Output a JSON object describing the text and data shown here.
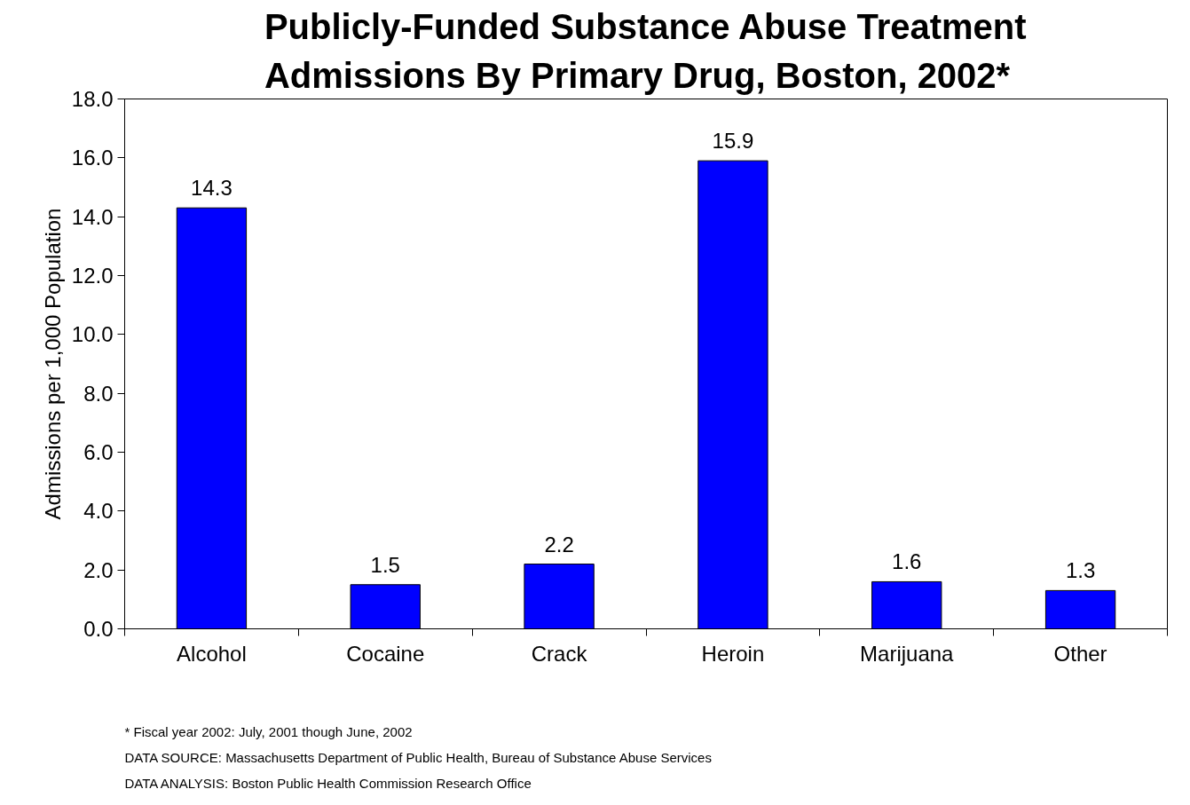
{
  "chart_data": {
    "type": "bar",
    "title": "Publicly-Funded Substance Abuse Treatment Admissions By Primary Drug, Boston, 2002*",
    "ylabel": "Admissions per 1,000 Population",
    "categories": [
      "Alcohol",
      "Cocaine",
      "Crack",
      "Heroin",
      "Marijuana",
      "Other"
    ],
    "values": [
      14.3,
      1.5,
      2.2,
      15.9,
      1.6,
      1.3
    ],
    "color": "#0000ff",
    "ylim": [
      0,
      18
    ],
    "yticks": [
      {
        "value": 0,
        "label": "0.0"
      },
      {
        "value": 2,
        "label": "2.0"
      },
      {
        "value": 4,
        "label": "4.0"
      },
      {
        "value": 6,
        "label": "6.0"
      },
      {
        "value": 8,
        "label": "8.0"
      },
      {
        "value": 10,
        "label": "10.0"
      },
      {
        "value": 12,
        "label": "12.0"
      },
      {
        "value": 14,
        "label": "14.0"
      },
      {
        "value": 16,
        "label": "16.0"
      },
      {
        "value": 18,
        "label": "18.0"
      }
    ],
    "data_labels": true,
    "grid": false,
    "annotations": [
      "* Fiscal year 2002: July, 2001 though June, 2002",
      "DATA SOURCE:  Massachusetts Department of Public Health, Bureau of Substance Abuse Services",
      "DATA ANALYSIS:  Boston Public Health Commission Research Office"
    ]
  }
}
